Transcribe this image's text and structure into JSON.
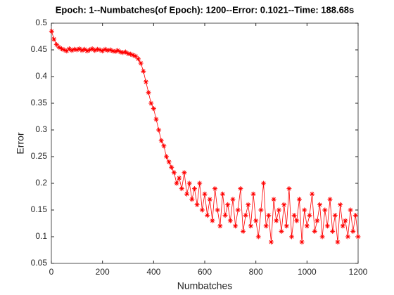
{
  "chart_data": {
    "type": "line",
    "title": "Epoch: 1--Numbatches(of Epoch): 1200--Error: 0.1021--Time: 188.68s",
    "x_label": "Numbatches",
    "y_label": "Error",
    "x": [
      1,
      10,
      20,
      30,
      40,
      50,
      60,
      70,
      80,
      90,
      100,
      110,
      120,
      130,
      140,
      150,
      160,
      170,
      180,
      190,
      200,
      210,
      220,
      230,
      240,
      250,
      260,
      270,
      280,
      290,
      300,
      310,
      320,
      330,
      340,
      350,
      360,
      370,
      380,
      390,
      400,
      410,
      420,
      430,
      440,
      450,
      460,
      470,
      480,
      490,
      500,
      510,
      520,
      530,
      540,
      550,
      560,
      570,
      580,
      590,
      600,
      610,
      620,
      630,
      640,
      650,
      660,
      670,
      680,
      690,
      700,
      710,
      720,
      730,
      740,
      750,
      760,
      770,
      780,
      790,
      800,
      810,
      820,
      830,
      840,
      850,
      860,
      870,
      880,
      890,
      900,
      910,
      920,
      930,
      940,
      950,
      960,
      970,
      980,
      990,
      1000,
      1010,
      1020,
      1030,
      1040,
      1050,
      1060,
      1070,
      1080,
      1090,
      1100,
      1110,
      1120,
      1130,
      1140,
      1150,
      1160,
      1170,
      1180,
      1190,
      1200
    ],
    "series": [
      {
        "name": "Error",
        "color": "#ff0000",
        "marker": "*",
        "values": [
          0.485,
          0.47,
          0.46,
          0.455,
          0.452,
          0.45,
          0.448,
          0.452,
          0.449,
          0.451,
          0.45,
          0.452,
          0.449,
          0.451,
          0.448,
          0.45,
          0.452,
          0.449,
          0.451,
          0.45,
          0.448,
          0.451,
          0.449,
          0.45,
          0.448,
          0.447,
          0.449,
          0.446,
          0.445,
          0.446,
          0.443,
          0.442,
          0.44,
          0.438,
          0.433,
          0.425,
          0.41,
          0.39,
          0.37,
          0.35,
          0.34,
          0.32,
          0.3,
          0.28,
          0.27,
          0.25,
          0.24,
          0.23,
          0.22,
          0.2,
          0.21,
          0.19,
          0.22,
          0.18,
          0.2,
          0.17,
          0.19,
          0.16,
          0.2,
          0.15,
          0.18,
          0.14,
          0.17,
          0.13,
          0.19,
          0.15,
          0.12,
          0.18,
          0.14,
          0.16,
          0.13,
          0.17,
          0.12,
          0.15,
          0.19,
          0.11,
          0.14,
          0.16,
          0.12,
          0.18,
          0.13,
          0.1,
          0.15,
          0.2,
          0.12,
          0.14,
          0.09,
          0.17,
          0.13,
          0.15,
          0.11,
          0.16,
          0.12,
          0.19,
          0.1,
          0.14,
          0.13,
          0.17,
          0.09,
          0.15,
          0.12,
          0.14,
          0.18,
          0.11,
          0.13,
          0.16,
          0.1,
          0.15,
          0.12,
          0.17,
          0.11,
          0.14,
          0.09,
          0.16,
          0.12,
          0.13,
          0.1,
          0.15,
          0.11,
          0.14,
          0.1
        ]
      }
    ],
    "xlim": [
      0,
      1200
    ],
    "xticks": [
      0,
      200,
      400,
      600,
      800,
      1000,
      1200
    ],
    "ylim": [
      0.05,
      0.5
    ],
    "yticks": [
      0.05,
      0.1,
      0.15,
      0.2,
      0.25,
      0.3,
      0.35,
      0.4,
      0.45,
      0.5
    ],
    "grid": false
  }
}
